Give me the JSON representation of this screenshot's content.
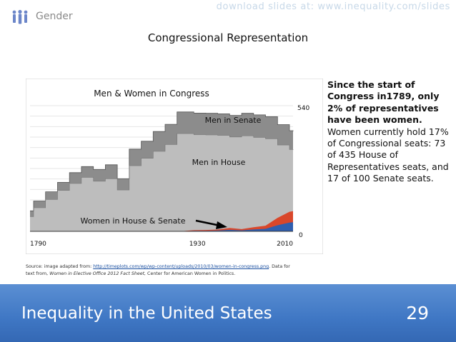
{
  "header": {
    "section": "Gender",
    "watermark": "download slides at: www.inequality.com/slides",
    "icon": "people-icon"
  },
  "slide": {
    "title": "Congressional Representation"
  },
  "chart_data": {
    "type": "area",
    "title": "Men & Women in Congress",
    "x_ticks": [
      "1790",
      "1930",
      "2010"
    ],
    "y_ticks": [
      "540",
      "0"
    ],
    "xlim": [
      1790,
      2010
    ],
    "ylim": [
      0,
      540
    ],
    "grid": true,
    "annotations": {
      "senate": "Men in Senate",
      "house": "Men in House",
      "women": "Women in House & Senate"
    },
    "series": [
      {
        "name": "Men in House",
        "color": "#bdbdbd",
        "x": [
          1790,
          1793,
          1803,
          1813,
          1823,
          1833,
          1843,
          1853,
          1863,
          1873,
          1883,
          1893,
          1903,
          1913,
          1917,
          1927,
          1937,
          1947,
          1957,
          1967,
          1977,
          1987,
          1997,
          2007,
          2010
        ],
        "y": [
          65,
          105,
          142,
          182,
          213,
          240,
          223,
          234,
          184,
          292,
          325,
          356,
          386,
          435,
          435,
          430,
          429,
          427,
          420,
          425,
          418,
          412,
          384,
          364,
          362
        ]
      },
      {
        "name": "Men in Senate",
        "color": "#8c8c8c",
        "x": [
          1790,
          1793,
          1803,
          1813,
          1823,
          1833,
          1843,
          1853,
          1863,
          1873,
          1883,
          1893,
          1903,
          1913,
          1917,
          1927,
          1937,
          1947,
          1957,
          1967,
          1977,
          1987,
          1997,
          2007,
          2010
        ],
        "y": [
          26,
          30,
          34,
          36,
          48,
          48,
          52,
          62,
          50,
          74,
          76,
          88,
          90,
          96,
          96,
          96,
          96,
          96,
          96,
          100,
          100,
          98,
          91,
          84,
          83
        ]
      },
      {
        "name": "Women in House & Senate",
        "color": "#d9472b",
        "x": [
          1917,
          1927,
          1937,
          1947,
          1957,
          1967,
          1977,
          1987,
          1997,
          2007,
          2010
        ],
        "y": [
          1,
          5,
          6,
          8,
          15,
          10,
          18,
          25,
          60,
          87,
          90
        ]
      }
    ]
  },
  "notes": {
    "highlight": "Since the start of Congress in1789, only 2% of representatives have been women.",
    "detail": "Women currently hold 17% of Congressional seats: 73 of 435 House of Representatives seats, and 17 of 100 Senate seats."
  },
  "source": {
    "prefix": "Source: image adapted from: ",
    "link": "http://timeplots.com/wp/wp-content/uploads/2010/03/women-in-congress.png",
    "mid": ". Data for text from, ",
    "italic": "Women in Elective Office 2012 Fact Sheet,",
    "suffix": " Center for American Women in Politics."
  },
  "footer": {
    "title": "Inequality in the United States",
    "page": "29"
  }
}
